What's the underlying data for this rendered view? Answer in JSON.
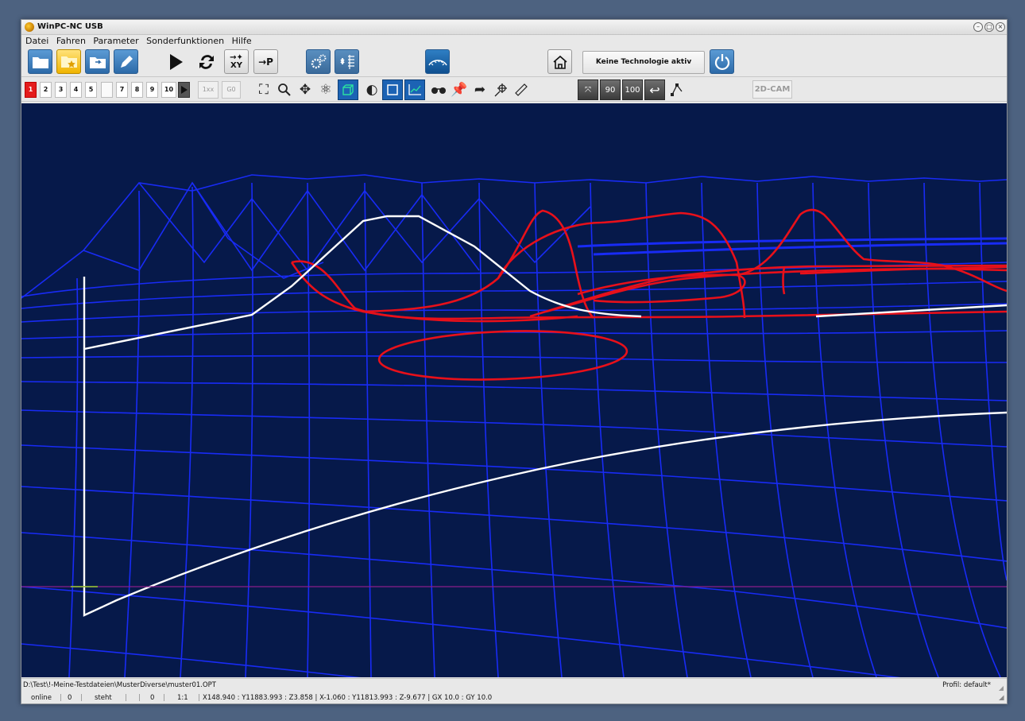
{
  "window": {
    "title": "WinPC-NC USB"
  },
  "menu": [
    "Datei",
    "Fahren",
    "Parameter",
    "Sonderfunktionen",
    "Hilfe"
  ],
  "toolbar1": {
    "buttons": [
      {
        "name": "open-file",
        "icon": "folder-icon"
      },
      {
        "name": "favorites",
        "icon": "folder-star-icon"
      },
      {
        "name": "import",
        "icon": "folder-arrow-icon"
      },
      {
        "name": "edit",
        "icon": "pencil-icon"
      },
      {
        "name": "start",
        "icon": "play-icon"
      },
      {
        "name": "repeat",
        "icon": "refresh-icon"
      },
      {
        "name": "move-to-xy",
        "icon": "move-xy-icon",
        "label": "XY"
      },
      {
        "name": "move-to-park",
        "icon": "move-p-icon",
        "label": "→P"
      },
      {
        "name": "settings",
        "icon": "gears-icon"
      },
      {
        "name": "tools",
        "icon": "tool-list-icon"
      },
      {
        "name": "surface-scan",
        "icon": "surface-icon"
      },
      {
        "name": "home",
        "icon": "house-icon"
      },
      {
        "name": "power",
        "icon": "power-icon"
      }
    ],
    "technology_label": "Keine Technologie aktiv"
  },
  "toolbar2": {
    "layer_buttons": [
      "1",
      "2",
      "3",
      "4",
      "5",
      "",
      "7",
      "8",
      "9",
      "10"
    ],
    "active_layer": "1",
    "btn_1xx": "1xx",
    "btn_g0": "G0",
    "cam_button": "2D-CAM",
    "view_icons": [
      "fit-view-icon",
      "zoom-icon",
      "pan-icon",
      "rotate-3d-icon",
      "cube-view-icon",
      "contrast-icon",
      "frame-view-icon",
      "chart-view-icon",
      "glasses-icon",
      "pin-icon",
      "undo-arrow-icon",
      "cursor-target-icon",
      "ruler-icon",
      "shrink-icon",
      "rotate-90-icon",
      "rotate-100-icon",
      "return-icon",
      "node-edit-icon"
    ],
    "dark_labels": [
      "90",
      "100"
    ]
  },
  "status": {
    "file_path": "D:\\Test\\!-Meine-Testdateien\\MusterDiverse\\muster01.OPT",
    "profile": "Profil: default*",
    "online": "online",
    "count1": "0",
    "motion": "steht",
    "count2": "0",
    "scale": "1:1",
    "coords": "X148.940 : Y11883.993 : Z3.858 | X-1.060 : Y11813.993 : Z-9.677 | GX 10.0 : GY 10.0"
  },
  "colors": {
    "viewport_bg": "#06194a",
    "mesh": "#1a2cff",
    "path_red": "#e8101a",
    "path_white": "#ffffff",
    "axis_line": "#8a1e8a"
  }
}
